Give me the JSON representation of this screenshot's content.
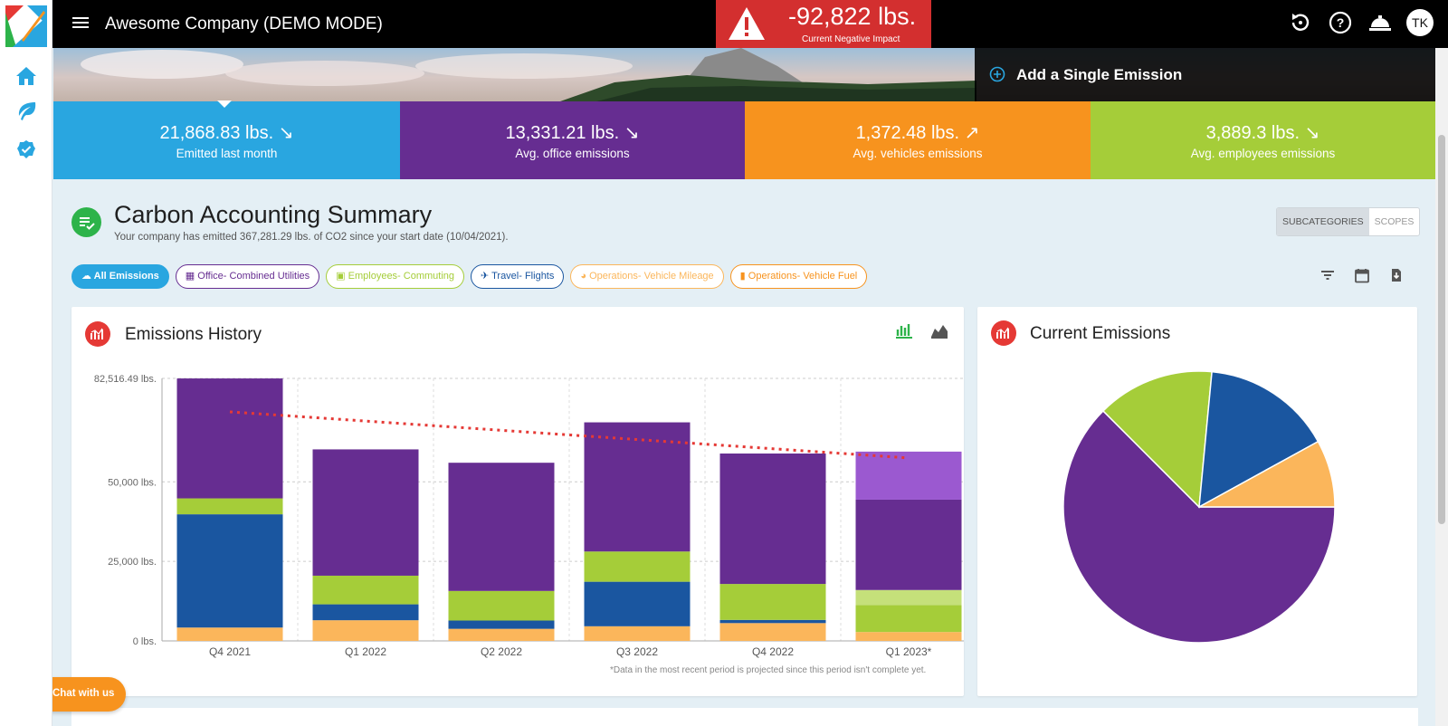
{
  "app": {
    "company": "Awesome Company (DEMO MODE)",
    "avatar_initials": "TK"
  },
  "impact": {
    "value": "-92,822 lbs.",
    "label": "Current Negative Impact",
    "color": "#d32f2f"
  },
  "sidebar": {
    "icons": [
      "home-icon",
      "leaf-icon",
      "verified-badge-icon"
    ]
  },
  "topbar_icons": [
    "history-icon",
    "help-icon",
    "service-bell-icon"
  ],
  "add_emission": {
    "label": "Add a Single Emission"
  },
  "stats": [
    {
      "value": "21,868.83 lbs.",
      "label": "Emitted last month",
      "trend": "down",
      "color": "#29a6e0"
    },
    {
      "value": "13,331.21 lbs.",
      "label": "Avg. office emissions",
      "trend": "down",
      "color": "#662d91"
    },
    {
      "value": "1,372.48 lbs.",
      "label": "Avg. vehicles emissions",
      "trend": "up",
      "color": "#f7931e"
    },
    {
      "value": "3,889.3 lbs.",
      "label": "Avg. employees emissions",
      "trend": "down",
      "color": "#a5cd39"
    }
  ],
  "summary": {
    "title": "Carbon Accounting Summary",
    "subtitle": "Your company has emitted 367,281.29 lbs. of CO2 since your start date (10/04/2021).",
    "segments": [
      {
        "label": "SUBCATEGORIES",
        "active": true
      },
      {
        "label": "SCOPES",
        "active": false
      }
    ]
  },
  "filters": [
    {
      "label": "All Emissions",
      "active": true,
      "color": "#29a6e0"
    },
    {
      "label": "Office- Combined Utilities",
      "active": false,
      "color": "#662d91"
    },
    {
      "label": "Employees- Commuting",
      "active": false,
      "color": "#a5cd39"
    },
    {
      "label": "Travel- Flights",
      "active": false,
      "color": "#1a56a0"
    },
    {
      "label": "Operations- Vehicle Mileage",
      "active": false,
      "color": "#fbb65b"
    },
    {
      "label": "Operations- Vehicle Fuel",
      "active": false,
      "color": "#f7931e"
    }
  ],
  "tools": [
    "filter-icon",
    "calendar-icon",
    "download-icon"
  ],
  "history_card": {
    "title": "Emissions History",
    "note": "*Data in the most recent period is projected since this period isn't complete yet."
  },
  "current_card": {
    "title": "Current Emissions"
  },
  "chat": {
    "label": "Chat with us"
  },
  "chart_data": [
    {
      "type": "bar",
      "stacked": true,
      "title": "Emissions History",
      "categories": [
        "Q4 2021",
        "Q1 2022",
        "Q2 2022",
        "Q3 2022",
        "Q4 2022",
        "Q1 2023*"
      ],
      "ytick_labels": [
        "0 lbs.",
        "25,000 lbs.",
        "50,000 lbs.",
        "82,516.49 lbs."
      ],
      "yticks": [
        0,
        25000,
        50000,
        82516.49
      ],
      "ylim": [
        0,
        82516.49
      ],
      "grid": true,
      "series": [
        {
          "color": "#fbb65b",
          "values": [
            4200,
            6500,
            3800,
            4600,
            5600,
            2800
          ]
        },
        {
          "color": "#1a56a0",
          "values": [
            35600,
            5000,
            2600,
            14000,
            1000,
            0
          ]
        },
        {
          "color": "#a5cd39",
          "values": [
            5000,
            9000,
            9300,
            9500,
            11300,
            8500
          ]
        },
        {
          "color": "#c5e07a",
          "values": [
            0,
            0,
            0,
            0,
            0,
            4700
          ]
        },
        {
          "color": "#662d91",
          "values": [
            37700,
            39700,
            40300,
            40600,
            41000,
            28400
          ]
        },
        {
          "color": "#9b59d0",
          "values": [
            0,
            0,
            0,
            0,
            0,
            15100
          ]
        }
      ],
      "trendline": {
        "color": "#e53935",
        "style": "dotted",
        "start": 72000,
        "end": 57500
      }
    },
    {
      "type": "pie",
      "title": "Current Emissions",
      "slices": [
        {
          "color": "#662d91",
          "value": 62.5
        },
        {
          "color": "#a5cd39",
          "value": 14.0
        },
        {
          "color": "#1a56a0",
          "value": 15.5
        },
        {
          "color": "#fbb65b",
          "value": 8.0
        }
      ]
    }
  ]
}
